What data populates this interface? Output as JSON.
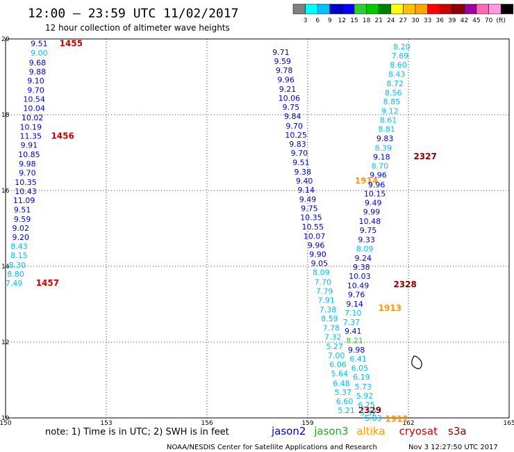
{
  "header": {
    "title": "12:00 — 23:59 UTC 11/02/2017",
    "subtitle": "12 hour collection of altimeter wave heights"
  },
  "colorbar": {
    "ticks": [
      "3",
      "6",
      "9",
      "12",
      "15",
      "18",
      "21",
      "24",
      "27",
      "30",
      "33",
      "36",
      "39",
      "42",
      "45",
      "70",
      "(ft)"
    ],
    "colors": [
      "#808080",
      "#00ffff",
      "#00bfff",
      "#0000cd",
      "#0000ff",
      "#32cd32",
      "#00c800",
      "#008000",
      "#ffff00",
      "#ffc000",
      "#ffa500",
      "#ff0000",
      "#c80000",
      "#8b0000",
      "#a000a0",
      "#ff69b4",
      "#ff99dd",
      "#000000"
    ]
  },
  "footer": {
    "note": "note:  1) Time is in UTC;  2) SWH is in feet",
    "credit": "NOAA/NESDIS Center for Satellite Applications and Research",
    "timestamp": "Nov  3 12:27:50 UTC 2017"
  },
  "legend": [
    {
      "name": "jason2",
      "color": "#0000cd"
    },
    {
      "name": "jason3",
      "color": "#22aa22"
    },
    {
      "name": "altika",
      "color": "#ff9900"
    },
    {
      "name": "cryosat",
      "color": "#cc0000"
    },
    {
      "name": "s3a",
      "color": "#8b0000"
    }
  ],
  "chart_data": {
    "type": "scatter",
    "xlim": [
      150,
      165
    ],
    "ylim": [
      10,
      20
    ],
    "x_ticks": [
      "150",
      "153",
      "156",
      "159",
      "162",
      "165"
    ],
    "y_ticks": [
      "10",
      "12",
      "14",
      "16",
      "18",
      "20"
    ],
    "grid": true,
    "tracks": [
      {
        "satellite": "jason2",
        "points": [
          {
            "lon": 151.0,
            "lat": 19.88,
            "label": "9.51",
            "color": "#0000cd"
          },
          {
            "lon": 151.0,
            "lat": 19.63,
            "label": "9.00",
            "color": "#00bfff"
          },
          {
            "lon": 150.95,
            "lat": 19.38,
            "label": "9.68",
            "color": "#0000cd"
          },
          {
            "lon": 150.95,
            "lat": 19.14,
            "label": "9.88",
            "color": "#0000cd"
          },
          {
            "lon": 150.9,
            "lat": 18.9,
            "label": "9.10",
            "color": "#0000cd"
          },
          {
            "lon": 150.9,
            "lat": 18.65,
            "label": "9.70",
            "color": "#0000cd"
          },
          {
            "lon": 150.85,
            "lat": 18.41,
            "label": "10.54",
            "color": "#0000cd"
          },
          {
            "lon": 150.85,
            "lat": 18.17,
            "label": "10.04",
            "color": "#0000cd"
          },
          {
            "lon": 150.8,
            "lat": 17.93,
            "label": "10.02",
            "color": "#0000cd"
          },
          {
            "lon": 150.75,
            "lat": 17.68,
            "label": "10.19",
            "color": "#0000cd"
          },
          {
            "lon": 150.75,
            "lat": 17.44,
            "label": "11.35",
            "color": "#0000cd"
          },
          {
            "lon": 150.7,
            "lat": 17.2,
            "label": "9.91",
            "color": "#0000cd"
          },
          {
            "lon": 150.7,
            "lat": 16.95,
            "label": "10.85",
            "color": "#0000cd"
          },
          {
            "lon": 150.65,
            "lat": 16.71,
            "label": "9.98",
            "color": "#0000cd"
          },
          {
            "lon": 150.65,
            "lat": 16.47,
            "label": "9.70",
            "color": "#0000cd"
          },
          {
            "lon": 150.6,
            "lat": 16.22,
            "label": "10.35",
            "color": "#0000cd"
          },
          {
            "lon": 150.6,
            "lat": 15.98,
            "label": "10.43",
            "color": "#0000cd"
          },
          {
            "lon": 150.55,
            "lat": 15.74,
            "label": "11.09",
            "color": "#0000cd"
          },
          {
            "lon": 150.5,
            "lat": 15.5,
            "label": "9.51",
            "color": "#0000cd"
          },
          {
            "lon": 150.5,
            "lat": 15.25,
            "label": "9.59",
            "color": "#0000cd"
          },
          {
            "lon": 150.45,
            "lat": 15.01,
            "label": "9.02",
            "color": "#0000cd"
          },
          {
            "lon": 150.45,
            "lat": 14.77,
            "label": "9.20",
            "color": "#0000cd"
          },
          {
            "lon": 150.4,
            "lat": 14.53,
            "label": "8.43",
            "color": "#00bfff"
          },
          {
            "lon": 150.4,
            "lat": 14.29,
            "label": "8.15",
            "color": "#00bfff"
          },
          {
            "lon": 150.35,
            "lat": 14.04,
            "label": "8.30",
            "color": "#00bfff"
          },
          {
            "lon": 150.3,
            "lat": 13.8,
            "label": "8.80",
            "color": "#00bfff"
          },
          {
            "lon": 150.25,
            "lat": 13.56,
            "label": "7.49",
            "color": "#00bfff"
          }
        ],
        "time_labels": [
          {
            "lon": 151.95,
            "lat": 19.88,
            "text": "1455",
            "color": "#cc0000"
          },
          {
            "lon": 151.7,
            "lat": 17.44,
            "text": "1456",
            "color": "#cc0000"
          },
          {
            "lon": 151.25,
            "lat": 13.56,
            "text": "1457",
            "color": "#cc0000"
          }
        ]
      },
      {
        "satellite": "jason3-desc",
        "points": [
          {
            "lon": 158.2,
            "lat": 19.65,
            "label": "9.71",
            "color": "#0000cd"
          },
          {
            "lon": 158.25,
            "lat": 19.41,
            "label": "9.59",
            "color": "#0000cd"
          },
          {
            "lon": 158.3,
            "lat": 19.17,
            "label": "9.78",
            "color": "#0000cd"
          },
          {
            "lon": 158.35,
            "lat": 18.93,
            "label": "9.96",
            "color": "#0000cd"
          },
          {
            "lon": 158.4,
            "lat": 18.68,
            "label": "9.21",
            "color": "#0000cd"
          },
          {
            "lon": 158.45,
            "lat": 18.44,
            "label": "10.06",
            "color": "#0000cd"
          },
          {
            "lon": 158.5,
            "lat": 18.2,
            "label": "9.75",
            "color": "#0000cd"
          },
          {
            "lon": 158.55,
            "lat": 17.96,
            "label": "9.84",
            "color": "#0000cd"
          },
          {
            "lon": 158.6,
            "lat": 17.71,
            "label": "9.70",
            "color": "#0000cd"
          },
          {
            "lon": 158.65,
            "lat": 17.47,
            "label": "10.25",
            "color": "#0000cd"
          },
          {
            "lon": 158.7,
            "lat": 17.23,
            "label": "9.83",
            "color": "#0000cd"
          },
          {
            "lon": 158.75,
            "lat": 16.99,
            "label": "9.70",
            "color": "#0000cd"
          },
          {
            "lon": 158.8,
            "lat": 16.74,
            "label": "9.51",
            "color": "#0000cd"
          },
          {
            "lon": 158.85,
            "lat": 16.5,
            "label": "9.38",
            "color": "#0000cd"
          },
          {
            "lon": 158.9,
            "lat": 16.26,
            "label": "9.40",
            "color": "#0000cd"
          },
          {
            "lon": 158.95,
            "lat": 16.02,
            "label": "9.14",
            "color": "#0000cd"
          },
          {
            "lon": 159.0,
            "lat": 15.77,
            "label": "9.49",
            "color": "#0000cd"
          },
          {
            "lon": 159.05,
            "lat": 15.53,
            "label": "9.75",
            "color": "#0000cd"
          },
          {
            "lon": 159.1,
            "lat": 15.29,
            "label": "10.35",
            "color": "#0000cd"
          },
          {
            "lon": 159.15,
            "lat": 15.05,
            "label": "10.55",
            "color": "#0000cd"
          },
          {
            "lon": 159.2,
            "lat": 14.8,
            "label": "10.07",
            "color": "#0000cd"
          },
          {
            "lon": 159.25,
            "lat": 14.56,
            "label": "9.96",
            "color": "#0000cd"
          },
          {
            "lon": 159.3,
            "lat": 14.32,
            "label": "9.90",
            "color": "#0000cd"
          },
          {
            "lon": 159.35,
            "lat": 14.08,
            "label": "9.05",
            "color": "#0000cd"
          },
          {
            "lon": 159.4,
            "lat": 13.84,
            "label": "8.09",
            "color": "#00bfff"
          },
          {
            "lon": 159.45,
            "lat": 13.59,
            "label": "7.70",
            "color": "#00bfff"
          },
          {
            "lon": 159.5,
            "lat": 13.35,
            "label": "7.79",
            "color": "#00bfff"
          },
          {
            "lon": 159.55,
            "lat": 13.11,
            "label": "7.91",
            "color": "#00bfff"
          },
          {
            "lon": 159.6,
            "lat": 12.86,
            "label": "7.38",
            "color": "#00bfff"
          },
          {
            "lon": 159.65,
            "lat": 12.62,
            "label": "8.59",
            "color": "#00bfff"
          },
          {
            "lon": 159.7,
            "lat": 12.38,
            "label": "7.78",
            "color": "#00bfff"
          },
          {
            "lon": 159.75,
            "lat": 12.14,
            "label": "7.32",
            "color": "#00bfff"
          },
          {
            "lon": 159.8,
            "lat": 11.89,
            "label": "5.27",
            "color": "#00bfff"
          },
          {
            "lon": 159.85,
            "lat": 11.65,
            "label": "7.00",
            "color": "#00bfff"
          },
          {
            "lon": 159.9,
            "lat": 11.41,
            "label": "6.06",
            "color": "#00bfff"
          },
          {
            "lon": 159.95,
            "lat": 11.17,
            "label": "5.64",
            "color": "#00bfff"
          },
          {
            "lon": 160.0,
            "lat": 10.92,
            "label": "6.48",
            "color": "#00bfff"
          },
          {
            "lon": 160.05,
            "lat": 10.68,
            "label": "5.37",
            "color": "#00bfff"
          },
          {
            "lon": 160.1,
            "lat": 10.44,
            "label": "6.60",
            "color": "#00bfff"
          },
          {
            "lon": 160.15,
            "lat": 10.2,
            "label": "5.21",
            "color": "#00bfff"
          }
        ],
        "time_labels": [
          {
            "lon": 160.75,
            "lat": 16.26,
            "text": "1914",
            "color": "#ff9900"
          },
          {
            "lon": 160.85,
            "lat": 10.2,
            "text": "2329",
            "color": "#8b0000"
          }
        ]
      },
      {
        "satellite": "jason3-asc",
        "points": [
          {
            "lon": 161.8,
            "lat": 19.8,
            "label": "8.20",
            "color": "#00bfff"
          },
          {
            "lon": 161.75,
            "lat": 19.56,
            "label": "7.69",
            "color": "#00bfff"
          },
          {
            "lon": 161.7,
            "lat": 19.32,
            "label": "8.60",
            "color": "#00bfff"
          },
          {
            "lon": 161.65,
            "lat": 19.07,
            "label": "8.43",
            "color": "#00bfff"
          },
          {
            "lon": 161.6,
            "lat": 18.83,
            "label": "8.72",
            "color": "#00bfff"
          },
          {
            "lon": 161.55,
            "lat": 18.59,
            "label": "8.56",
            "color": "#00bfff"
          },
          {
            "lon": 161.5,
            "lat": 18.35,
            "label": "8.85",
            "color": "#00bfff"
          },
          {
            "lon": 161.45,
            "lat": 18.1,
            "label": "9.12",
            "color": "#00bfff"
          },
          {
            "lon": 161.4,
            "lat": 17.86,
            "label": "8.61",
            "color": "#00bfff"
          },
          {
            "lon": 161.35,
            "lat": 17.62,
            "label": "8.81",
            "color": "#00bfff"
          },
          {
            "lon": 161.3,
            "lat": 17.38,
            "label": "9.83",
            "color": "#0000cd"
          },
          {
            "lon": 161.25,
            "lat": 17.13,
            "label": "8.39",
            "color": "#00bfff"
          },
          {
            "lon": 161.2,
            "lat": 16.89,
            "label": "9.18",
            "color": "#0000cd"
          },
          {
            "lon": 161.15,
            "lat": 16.65,
            "label": "8.70",
            "color": "#00bfff"
          },
          {
            "lon": 161.1,
            "lat": 16.41,
            "label": "9.96",
            "color": "#0000cd"
          },
          {
            "lon": 161.05,
            "lat": 16.16,
            "label": "9.96",
            "color": "#0000cd"
          },
          {
            "lon": 161.0,
            "lat": 15.92,
            "label": "10.15",
            "color": "#0000cd"
          },
          {
            "lon": 160.95,
            "lat": 15.68,
            "label": "9.49",
            "color": "#0000cd"
          },
          {
            "lon": 160.9,
            "lat": 15.44,
            "label": "9.99",
            "color": "#0000cd"
          },
          {
            "lon": 160.85,
            "lat": 15.19,
            "label": "10.48",
            "color": "#0000cd"
          },
          {
            "lon": 160.8,
            "lat": 14.95,
            "label": "9.75",
            "color": "#0000cd"
          },
          {
            "lon": 160.75,
            "lat": 14.71,
            "label": "9.33",
            "color": "#0000cd"
          },
          {
            "lon": 160.7,
            "lat": 14.47,
            "label": "8.09",
            "color": "#00bfff"
          },
          {
            "lon": 160.65,
            "lat": 14.22,
            "label": "9.24",
            "color": "#0000cd"
          },
          {
            "lon": 160.6,
            "lat": 13.98,
            "label": "9.38",
            "color": "#0000cd"
          },
          {
            "lon": 160.55,
            "lat": 13.74,
            "label": "10.03",
            "color": "#0000cd"
          },
          {
            "lon": 160.5,
            "lat": 13.5,
            "label": "10.49",
            "color": "#0000cd"
          },
          {
            "lon": 160.45,
            "lat": 13.26,
            "label": "9.76",
            "color": "#0000cd"
          },
          {
            "lon": 160.4,
            "lat": 13.01,
            "label": "9.14",
            "color": "#0000cd"
          },
          {
            "lon": 160.35,
            "lat": 12.77,
            "label": "7.10",
            "color": "#00bfff"
          },
          {
            "lon": 160.3,
            "lat": 12.53,
            "label": "7.37",
            "color": "#00bfff"
          },
          {
            "lon": 160.35,
            "lat": 12.29,
            "label": "9.41",
            "color": "#0000cd"
          },
          {
            "lon": 160.4,
            "lat": 12.05,
            "label": "8.21",
            "color": "#32cd32"
          },
          {
            "lon": 160.45,
            "lat": 11.8,
            "label": "9.98",
            "color": "#0000cd"
          },
          {
            "lon": 160.5,
            "lat": 11.56,
            "label": "6.41",
            "color": "#00bfff"
          },
          {
            "lon": 160.55,
            "lat": 11.32,
            "label": "6.05",
            "color": "#00bfff"
          },
          {
            "lon": 160.6,
            "lat": 11.08,
            "label": "6.19",
            "color": "#00bfff"
          },
          {
            "lon": 160.65,
            "lat": 10.83,
            "label": "5.73",
            "color": "#00bfff"
          },
          {
            "lon": 160.7,
            "lat": 10.59,
            "label": "5.92",
            "color": "#00bfff"
          },
          {
            "lon": 160.75,
            "lat": 10.35,
            "label": "6.25",
            "color": "#00bfff"
          },
          {
            "lon": 160.8,
            "lat": 10.14,
            "label": "5.32",
            "color": "#00bfff"
          },
          {
            "lon": 160.95,
            "lat": 10.0,
            "label": "5.83",
            "color": "#00bfff"
          }
        ],
        "time_labels": [
          {
            "lon": 162.5,
            "lat": 16.9,
            "text": "2327",
            "color": "#8b0000"
          },
          {
            "lon": 161.9,
            "lat": 13.52,
            "text": "2328",
            "color": "#8b0000"
          },
          {
            "lon": 161.45,
            "lat": 12.9,
            "text": "1913",
            "color": "#ff9900"
          },
          {
            "lon": 161.65,
            "lat": 9.97,
            "text": "1912",
            "color": "#ff9900"
          }
        ]
      }
    ]
  }
}
